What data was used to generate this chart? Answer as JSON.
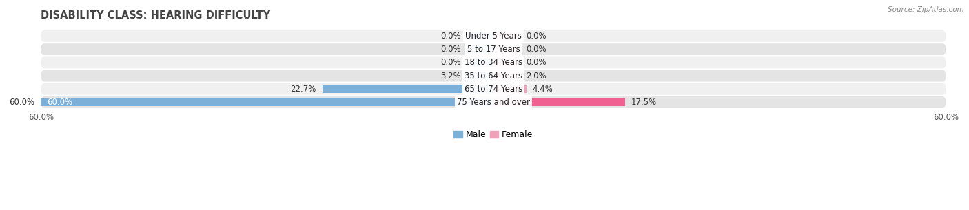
{
  "title": "DISABILITY CLASS: HEARING DIFFICULTY",
  "source": "Source: ZipAtlas.com",
  "categories": [
    "Under 5 Years",
    "5 to 17 Years",
    "18 to 34 Years",
    "35 to 64 Years",
    "65 to 74 Years",
    "75 Years and over"
  ],
  "male_values": [
    0.0,
    0.0,
    0.0,
    3.2,
    22.7,
    60.0
  ],
  "female_values": [
    0.0,
    0.0,
    0.0,
    2.0,
    4.4,
    17.5
  ],
  "male_color": "#7cb0d8",
  "female_color": "#f0a0b8",
  "female_color_last": "#f06090",
  "row_bg_color_odd": "#f0f0f0",
  "row_bg_color_even": "#e4e4e4",
  "xlim": 60.0,
  "bar_height": 0.6,
  "min_bar_width": 3.5,
  "title_fontsize": 10.5,
  "label_fontsize": 8.5,
  "value_fontsize": 8.5,
  "tick_fontsize": 8.5,
  "legend_fontsize": 9,
  "figure_bg": "#ffffff",
  "axes_bg": "#ffffff"
}
